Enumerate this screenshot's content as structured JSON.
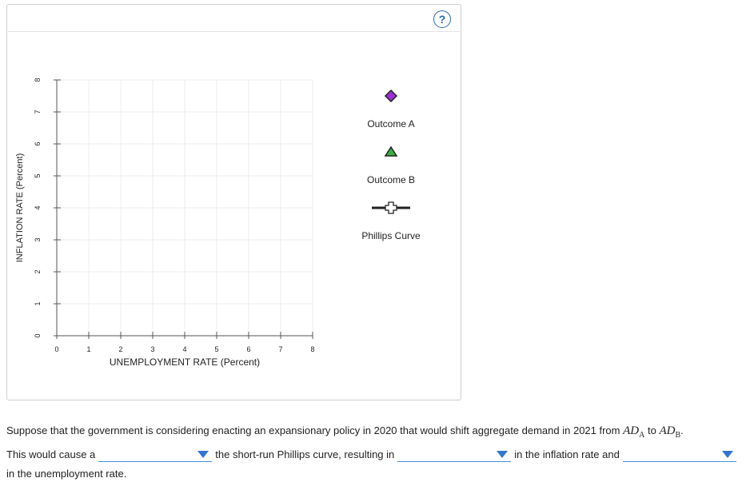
{
  "panel": {
    "help_label": "?"
  },
  "chart_data": {
    "type": "scatter",
    "title": "",
    "xlabel": "UNEMPLOYMENT RATE (Percent)",
    "ylabel": "INFLATION RATE (Percent)",
    "xlim": [
      0,
      8
    ],
    "ylim": [
      0,
      8
    ],
    "x_ticks": [
      "0",
      "1",
      "2",
      "3",
      "4",
      "5",
      "6",
      "7",
      "8"
    ],
    "y_ticks": [
      "0",
      "1",
      "2",
      "3",
      "4",
      "5",
      "6",
      "7",
      "8"
    ],
    "grid": true,
    "series": []
  },
  "palette": {
    "title": "",
    "items": [
      {
        "label": "Outcome A",
        "marker": "diamond",
        "color": "#9b30d0"
      },
      {
        "label": "Outcome B",
        "marker": "triangle",
        "color": "#3cb043"
      },
      {
        "label": "Phillips Curve",
        "marker": "line-cross",
        "color": "#222222"
      }
    ]
  },
  "question": {
    "intro": "Suppose that the government is considering enacting an expansionary policy in 2020 that would shift aggregate demand in 2021 from",
    "ad_a": "AD",
    "ad_a_sub": "A",
    "to_word": "to",
    "ad_b": "AD",
    "ad_b_sub": "B",
    "period": ".",
    "part1": "This would cause a",
    "part2": "the short-run Phillips curve, resulting in",
    "part3": "in the inflation rate and",
    "part4": "in the unemployment rate.",
    "dropdown1_value": "",
    "dropdown2_value": "",
    "dropdown3_value": ""
  }
}
